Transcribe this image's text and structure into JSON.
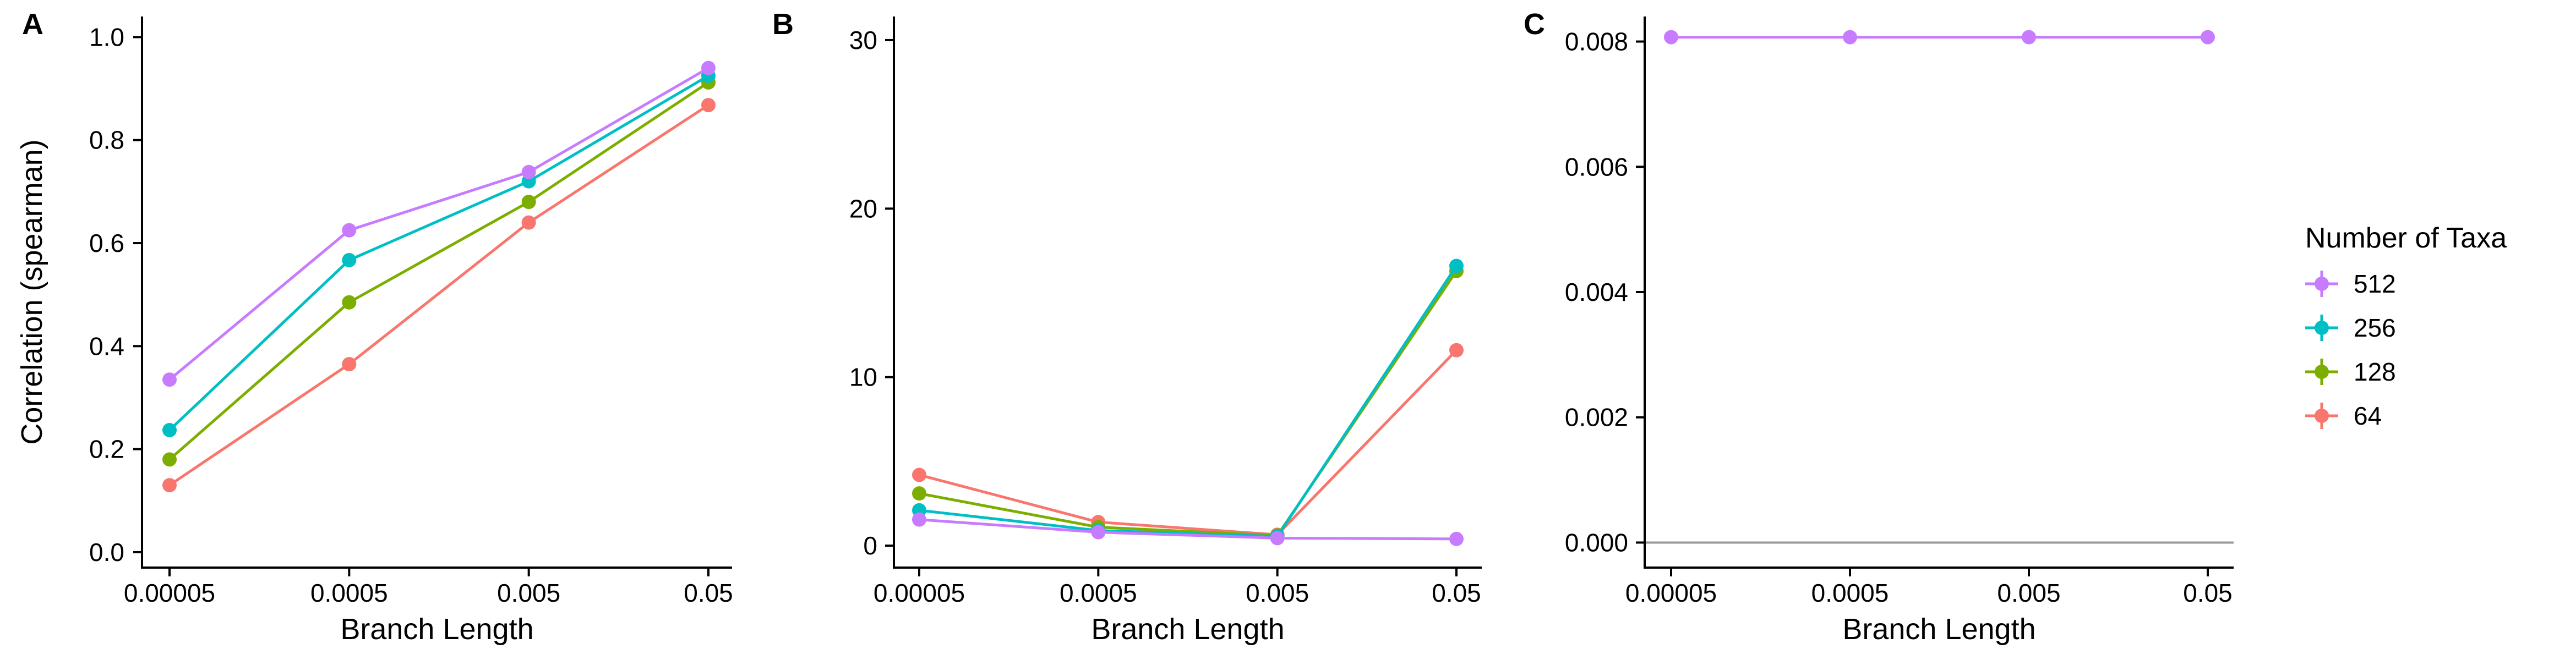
{
  "legend": {
    "title": "Number of Taxa",
    "entries": [
      {
        "label": "512",
        "color": "#C77CFF"
      },
      {
        "label": "256",
        "color": "#00BFC4"
      },
      {
        "label": "128",
        "color": "#7CAE00"
      },
      {
        "label": "64",
        "color": "#F8766D"
      }
    ]
  },
  "chart_data": [
    {
      "panel": "A",
      "type": "line",
      "xlabel": "Branch Length",
      "ylabel": "Correlation (spearman)",
      "categories": [
        "0.00005",
        "0.0005",
        "0.005",
        "0.05"
      ],
      "ylim": [
        -0.03,
        1.04
      ],
      "yticks": [
        0.0,
        0.2,
        0.4,
        0.6,
        0.8,
        1.0
      ],
      "ytick_labels": [
        "0.0",
        "0.2",
        "0.4",
        "0.6",
        "0.8",
        "1.0"
      ],
      "series": [
        {
          "name": "64",
          "color": "#F8766D",
          "values": [
            0.13,
            0.365,
            0.64,
            0.868
          ]
        },
        {
          "name": "128",
          "color": "#7CAE00",
          "values": [
            0.18,
            0.485,
            0.68,
            0.912
          ]
        },
        {
          "name": "256",
          "color": "#00BFC4",
          "values": [
            0.237,
            0.567,
            0.72,
            0.925
          ]
        },
        {
          "name": "512",
          "color": "#C77CFF",
          "values": [
            0.335,
            0.625,
            0.738,
            0.94
          ]
        }
      ]
    },
    {
      "panel": "B",
      "type": "line",
      "xlabel": "Branch Length",
      "ylabel": "",
      "categories": [
        "0.00005",
        "0.0005",
        "0.005",
        "0.05"
      ],
      "ylim": [
        -1.3,
        31.4
      ],
      "yticks": [
        0,
        10,
        20,
        30
      ],
      "ytick_labels": [
        "0",
        "10",
        "20",
        "30"
      ],
      "series": [
        {
          "name": "64",
          "color": "#F8766D",
          "values": [
            4.2,
            1.4,
            0.65,
            11.6
          ]
        },
        {
          "name": "128",
          "color": "#7CAE00",
          "values": [
            3.1,
            1.1,
            0.6,
            16.3
          ]
        },
        {
          "name": "256",
          "color": "#00BFC4",
          "values": [
            2.1,
            0.9,
            0.55,
            16.6
          ]
        },
        {
          "name": "512",
          "color": "#C77CFF",
          "values": [
            1.55,
            0.8,
            0.45,
            0.4
          ]
        }
      ]
    },
    {
      "panel": "C",
      "type": "line",
      "xlabel": "Branch Length",
      "ylabel": "",
      "categories": [
        "0.00005",
        "0.0005",
        "0.005",
        "0.05"
      ],
      "ylim": [
        -0.0004,
        0.0084
      ],
      "yticks": [
        0.0,
        0.002,
        0.004,
        0.006,
        0.008
      ],
      "ytick_labels": [
        "0.000",
        "0.002",
        "0.004",
        "0.006",
        "0.008"
      ],
      "hline": 0,
      "series": [
        {
          "name": "512",
          "color": "#C77CFF",
          "values": [
            0.00807,
            0.00807,
            0.00807,
            0.00807
          ]
        }
      ]
    }
  ]
}
